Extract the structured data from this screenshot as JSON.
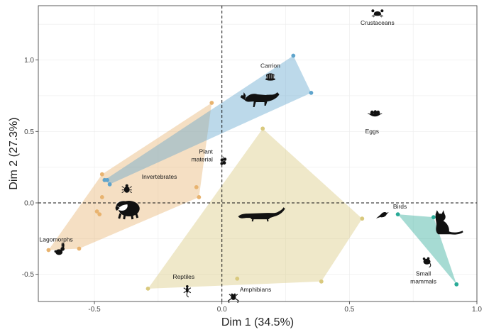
{
  "chart_data": {
    "type": "scatter",
    "title": "",
    "xlabel": "Dim 1 (34.5%)",
    "ylabel": "Dim 2 (27.3%)",
    "xlim": [
      -0.72,
      1.0
    ],
    "ylim": [
      -0.69,
      1.38
    ],
    "x_ticks": [
      -0.5,
      0.0,
      0.5,
      1.0
    ],
    "x_tick_labels": [
      "-0.5",
      "0.0",
      "0.5",
      "1.0"
    ],
    "y_ticks": [
      -0.5,
      0.0,
      0.5,
      1.0
    ],
    "y_tick_labels": [
      "-0.5",
      "0.0",
      "0.5",
      "1.0"
    ],
    "grid": true,
    "reference_lines": {
      "x": 0,
      "y": 0,
      "style": "dashed"
    },
    "colors": {
      "badger": "#e8b36f",
      "fox": "#5fa4cc",
      "mongoose": "#d9c97e",
      "cat": "#2aaa97"
    },
    "series": [
      {
        "name": "badger",
        "icon": "badger-icon",
        "points": [
          [
            -0.68,
            -0.33
          ],
          [
            -0.56,
            -0.32
          ],
          [
            -0.49,
            -0.06
          ],
          [
            -0.48,
            -0.08
          ],
          [
            -0.47,
            0.04
          ],
          [
            -0.47,
            0.2
          ],
          [
            -0.46,
            0.16
          ],
          [
            -0.1,
            0.11
          ],
          [
            -0.09,
            0.04
          ],
          [
            -0.04,
            0.7
          ]
        ],
        "hull": [
          [
            -0.68,
            -0.33
          ],
          [
            -0.47,
            0.2
          ],
          [
            -0.04,
            0.7
          ],
          [
            -0.09,
            0.04
          ],
          [
            -0.56,
            -0.32
          ]
        ]
      },
      {
        "name": "fox",
        "icon": "fox-icon",
        "points": [
          [
            -0.46,
            0.16
          ],
          [
            -0.45,
            0.16
          ],
          [
            -0.44,
            0.13
          ],
          [
            0.28,
            1.03
          ],
          [
            0.35,
            0.77
          ]
        ],
        "hull": [
          [
            -0.46,
            0.16
          ],
          [
            0.28,
            1.03
          ],
          [
            0.35,
            0.77
          ],
          [
            -0.44,
            0.13
          ]
        ]
      },
      {
        "name": "mongoose",
        "icon": "mongoose-icon",
        "points": [
          [
            -0.29,
            -0.6
          ],
          [
            0.06,
            -0.53
          ],
          [
            0.16,
            0.52
          ],
          [
            0.39,
            -0.55
          ],
          [
            0.55,
            -0.11
          ]
        ],
        "hull": [
          [
            -0.29,
            -0.6
          ],
          [
            0.16,
            0.52
          ],
          [
            0.55,
            -0.11
          ],
          [
            0.39,
            -0.55
          ]
        ]
      },
      {
        "name": "cat",
        "icon": "cat-icon",
        "points": [
          [
            0.69,
            -0.08
          ],
          [
            0.83,
            -0.1
          ],
          [
            0.92,
            -0.57
          ]
        ],
        "hull": [
          [
            0.69,
            -0.08
          ],
          [
            0.83,
            -0.1
          ],
          [
            0.92,
            -0.57
          ]
        ]
      }
    ],
    "categories": [
      {
        "name": "Crustaceans",
        "x": 0.61,
        "y": 1.25,
        "icon": "crab-icon"
      },
      {
        "name": "Carrion",
        "x": 0.19,
        "y": 0.95,
        "icon": "carcass-icon"
      },
      {
        "name": "Eggs",
        "x": 0.6,
        "y": 0.55,
        "icon": "nest-eggs-icon"
      },
      {
        "name": "Plant material",
        "x": -0.03,
        "y": 0.32,
        "icon": "plant-icon"
      },
      {
        "name": "Invertebrates",
        "x": -0.32,
        "y": 0.17,
        "icon": "beetle-icon"
      },
      {
        "name": "Birds",
        "x": 0.66,
        "y": -0.04,
        "icon": "bird-icon"
      },
      {
        "name": "Lagomorphs",
        "x": -0.65,
        "y": -0.26,
        "icon": "rabbit-icon"
      },
      {
        "name": "Small mammals",
        "x": 0.79,
        "y": -0.51,
        "icon": "rodent-icon"
      },
      {
        "name": "Reptiles",
        "x": -0.15,
        "y": -0.53,
        "icon": "lizard-icon"
      },
      {
        "name": "Amphibians",
        "x": 0.07,
        "y": -0.62,
        "icon": "frog-icon"
      }
    ]
  }
}
